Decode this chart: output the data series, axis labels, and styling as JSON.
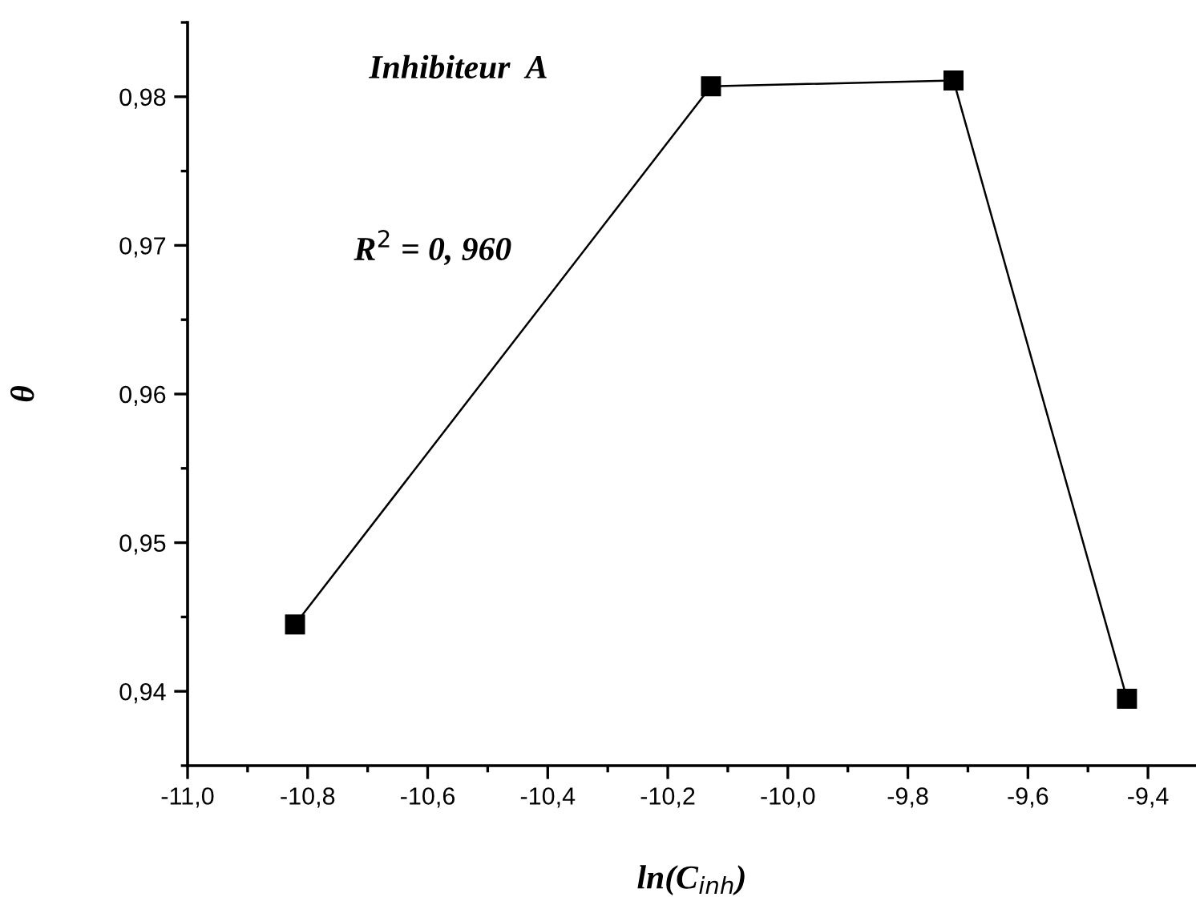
{
  "chart_data": {
    "type": "line",
    "xlabel": "ln(C$_{inh}$)",
    "ylabel": "θ",
    "x": [
      -10.821,
      -10.128,
      -9.724,
      -9.435
    ],
    "series": [
      {
        "color": "#000000",
        "values": [
          0.9445,
          0.9807,
          0.9811,
          0.9395
        ]
      }
    ],
    "marker": "square",
    "line_style": "solid",
    "grid": false,
    "legend": false,
    "xlim": [
      -11.0,
      -9.32
    ],
    "xticks": [
      {
        "value": -11.0,
        "label": "-11,0"
      },
      {
        "value": -10.8,
        "label": "-10,8"
      },
      {
        "value": -10.6,
        "label": "-10,6"
      },
      {
        "value": -10.4,
        "label": "-10,4"
      },
      {
        "value": -10.2,
        "label": "-10,2"
      },
      {
        "value": -10.0,
        "label": "-10,0"
      },
      {
        "value": -9.8,
        "label": "-9,8"
      },
      {
        "value": -9.6,
        "label": "-9,6"
      },
      {
        "value": -9.4,
        "label": "-9,4"
      }
    ],
    "ylim": [
      0.935,
      0.985
    ],
    "yticks": [
      {
        "value": 0.94,
        "label": "0,94"
      },
      {
        "value": 0.95,
        "label": "0,95"
      },
      {
        "value": 0.96,
        "label": "0,96"
      },
      {
        "value": 0.97,
        "label": "0,97"
      },
      {
        "value": 0.98,
        "label": "0,98"
      }
    ],
    "annotations": [
      "Inhibiteur  A",
      "R$^{2}$ = 0, 960"
    ]
  }
}
